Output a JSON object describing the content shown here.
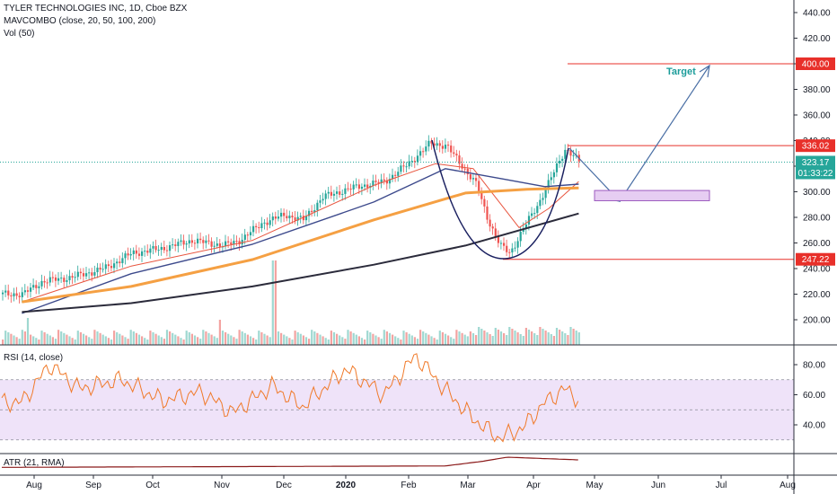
{
  "legend": {
    "title": "TYLER TECHNOLOGIES INC, 1D, Cboe BZX",
    "indicator": "MAVCOMBO (close, 20, 50, 100, 200)",
    "volume": "Vol (50)"
  },
  "rsi_legend": "RSI (14, close)",
  "atr_legend": "ATR (21, RMA)",
  "colors": {
    "up": "#26a69a",
    "down": "#ef5350",
    "ma20": "#e8553f",
    "ma50": "#3d4a8c",
    "ma100": "#f5a043",
    "ma200": "#2b2b3b",
    "annotation": "#4a6fa5",
    "cup": "#1a2060",
    "level_line": "#e8302a",
    "level_tag": "#e8302a",
    "price_tag": "#26a69a",
    "rsi_band": "#efe3f9",
    "rsi_line": "#f07a2a",
    "target_text": "#1b9c9a"
  },
  "chart_data": {
    "type": "candlestick",
    "symbol": "TYLER TECHNOLOGIES INC",
    "interval": "1D",
    "exchange": "Cboe BZX",
    "x_axis_labels": [
      "Aug",
      "Sep",
      "Oct",
      "Nov",
      "Dec",
      "2020",
      "Feb",
      "Mar",
      "Apr",
      "May",
      "Jun",
      "Jul",
      "Aug"
    ],
    "price_axis": {
      "ylim": [
        180,
        450
      ],
      "ticks": [
        200,
        220,
        240,
        260,
        280,
        300,
        320,
        340,
        360,
        380,
        400,
        420,
        440
      ]
    },
    "price_keypoints": [
      {
        "x": "2019-07-22",
        "y": 220
      },
      {
        "x": "2019-08-01",
        "y": 230
      },
      {
        "x": "2019-08-15",
        "y": 233
      },
      {
        "x": "2019-09-01",
        "y": 240
      },
      {
        "x": "2019-09-15",
        "y": 252
      },
      {
        "x": "2019-10-01",
        "y": 256
      },
      {
        "x": "2019-10-15",
        "y": 262
      },
      {
        "x": "2019-10-31",
        "y": 258
      },
      {
        "x": "2019-11-08",
        "y": 262
      },
      {
        "x": "2019-11-20",
        "y": 276
      },
      {
        "x": "2019-12-01",
        "y": 282
      },
      {
        "x": "2019-12-10",
        "y": 278
      },
      {
        "x": "2019-12-20",
        "y": 296
      },
      {
        "x": "2020-01-06",
        "y": 304
      },
      {
        "x": "2020-01-20",
        "y": 308
      },
      {
        "x": "2020-02-01",
        "y": 322
      },
      {
        "x": "2020-02-12",
        "y": 338
      },
      {
        "x": "2020-02-20",
        "y": 336
      },
      {
        "x": "2020-02-28",
        "y": 320
      },
      {
        "x": "2020-03-06",
        "y": 306
      },
      {
        "x": "2020-03-12",
        "y": 278
      },
      {
        "x": "2020-03-18",
        "y": 258
      },
      {
        "x": "2020-03-23",
        "y": 252
      },
      {
        "x": "2020-03-30",
        "y": 272
      },
      {
        "x": "2020-04-06",
        "y": 290
      },
      {
        "x": "2020-04-13",
        "y": 312
      },
      {
        "x": "2020-04-20",
        "y": 334
      },
      {
        "x": "2020-04-27",
        "y": 323.17
      }
    ],
    "moving_averages": [
      {
        "period": 20,
        "keypoints": [
          {
            "x": "2019-07-22",
            "y": 214
          },
          {
            "x": "2019-09-15",
            "y": 242
          },
          {
            "x": "2019-11-15",
            "y": 262
          },
          {
            "x": "2020-01-15",
            "y": 305
          },
          {
            "x": "2020-02-15",
            "y": 322
          },
          {
            "x": "2020-03-05",
            "y": 318
          },
          {
            "x": "2020-03-28",
            "y": 272
          },
          {
            "x": "2020-04-12",
            "y": 287
          },
          {
            "x": "2020-04-27",
            "y": 308
          }
        ]
      },
      {
        "period": 50,
        "keypoints": [
          {
            "x": "2019-07-22",
            "y": 205
          },
          {
            "x": "2019-09-15",
            "y": 236
          },
          {
            "x": "2019-11-15",
            "y": 259
          },
          {
            "x": "2020-01-15",
            "y": 292
          },
          {
            "x": "2020-02-20",
            "y": 318
          },
          {
            "x": "2020-03-20",
            "y": 310
          },
          {
            "x": "2020-04-10",
            "y": 304
          },
          {
            "x": "2020-04-27",
            "y": 306
          }
        ]
      },
      {
        "period": 100,
        "keypoints": [
          {
            "x": "2019-07-22",
            "y": 214
          },
          {
            "x": "2019-09-15",
            "y": 226
          },
          {
            "x": "2019-11-15",
            "y": 247
          },
          {
            "x": "2020-01-15",
            "y": 278
          },
          {
            "x": "2020-03-01",
            "y": 299
          },
          {
            "x": "2020-04-01",
            "y": 302
          },
          {
            "x": "2020-04-27",
            "y": 303
          }
        ]
      },
      {
        "period": 200,
        "keypoints": [
          {
            "x": "2019-07-22",
            "y": 206
          },
          {
            "x": "2019-09-15",
            "y": 213
          },
          {
            "x": "2019-11-15",
            "y": 226
          },
          {
            "x": "2020-01-15",
            "y": 243
          },
          {
            "x": "2020-03-01",
            "y": 258
          },
          {
            "x": "2020-04-27",
            "y": 283
          }
        ]
      }
    ],
    "volume_keypoints": [
      {
        "x": "2019-08-01",
        "y": 0.25
      },
      {
        "x": "2019-08-05",
        "y": 0.9
      },
      {
        "x": "2019-11-01",
        "y": 0.6
      },
      {
        "x": "2019-11-20",
        "y": 1.0
      },
      {
        "x": "2020-03-01",
        "y": 0.45
      },
      {
        "x": "2020-04-27",
        "y": 0.5
      }
    ],
    "levels": [
      {
        "label": "400.00",
        "value": 400
      },
      {
        "label": "336.02",
        "value": 336.02
      },
      {
        "label": "247.22",
        "value": 247.22
      }
    ],
    "last_price": {
      "label": "323.17",
      "value": 323.17,
      "countdown": "01:33:22"
    },
    "annotations": {
      "target_label": "Target",
      "target_zone": {
        "from": 293,
        "to": 301
      }
    },
    "rsi": {
      "axis_ticks": [
        40,
        60,
        80
      ],
      "band": [
        30,
        70
      ],
      "keypoints": [
        {
          "x": "2019-07-22",
          "y": 55
        },
        {
          "x": "2019-08-05",
          "y": 80
        },
        {
          "x": "2019-08-20",
          "y": 64
        },
        {
          "x": "2019-09-10",
          "y": 70
        },
        {
          "x": "2019-10-01",
          "y": 56
        },
        {
          "x": "2019-10-20",
          "y": 62
        },
        {
          "x": "2019-11-05",
          "y": 48
        },
        {
          "x": "2019-11-25",
          "y": 66
        },
        {
          "x": "2019-12-10",
          "y": 52
        },
        {
          "x": "2020-01-01",
          "y": 77
        },
        {
          "x": "2020-01-20",
          "y": 60
        },
        {
          "x": "2020-02-05",
          "y": 86
        },
        {
          "x": "2020-02-18",
          "y": 66
        },
        {
          "x": "2020-03-05",
          "y": 44
        },
        {
          "x": "2020-03-18",
          "y": 31
        },
        {
          "x": "2020-03-30",
          "y": 38
        },
        {
          "x": "2020-04-10",
          "y": 55
        },
        {
          "x": "2020-04-20",
          "y": 64
        },
        {
          "x": "2020-04-27",
          "y": 57
        }
      ]
    },
    "atr": {
      "keypoints": [
        {
          "x": "2019-07-22",
          "y": 0.25
        },
        {
          "x": "2020-02-20",
          "y": 0.35
        },
        {
          "x": "2020-03-10",
          "y": 0.7
        },
        {
          "x": "2020-03-22",
          "y": 1.0
        },
        {
          "x": "2020-04-27",
          "y": 0.8
        }
      ]
    }
  }
}
